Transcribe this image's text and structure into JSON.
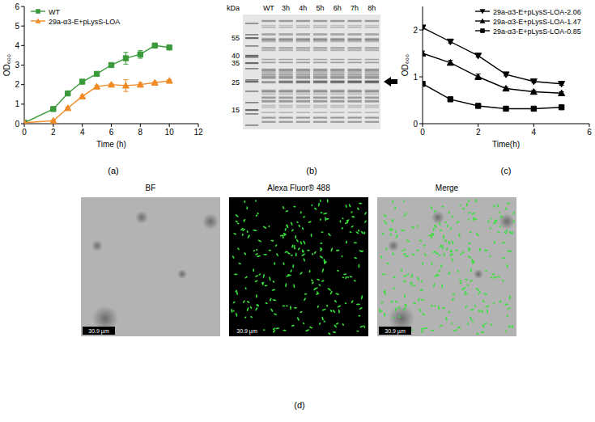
{
  "chart_data": [
    {
      "type": "line",
      "panel_label": "(a)",
      "x_label": "Time (h)",
      "y_label": "OD₆₀₀",
      "xlim": [
        0,
        12
      ],
      "xticks": [
        0,
        2,
        4,
        6,
        8,
        10,
        12
      ],
      "ylim": [
        0,
        6
      ],
      "yticks": [
        0,
        1,
        2,
        3,
        4,
        5,
        6
      ],
      "legend": "upper left",
      "x": [
        0,
        2,
        3,
        4,
        5,
        6,
        7,
        8,
        9,
        10
      ],
      "series": [
        {
          "name": "WT",
          "color": "#3a9a3a",
          "marker": "square",
          "values": [
            0.05,
            0.75,
            1.55,
            2.15,
            2.55,
            3.0,
            3.35,
            3.55,
            4.0,
            3.9
          ],
          "errors": [
            0.02,
            0.03,
            0.05,
            0.05,
            0.05,
            0.05,
            0.3,
            0.2,
            0.05,
            0.05
          ]
        },
        {
          "name": "29a-α3-E+pLysS-LOA",
          "color": "#f08a24",
          "marker": "triangle",
          "values": [
            0.05,
            0.15,
            0.8,
            1.4,
            1.9,
            2.0,
            1.95,
            2.0,
            2.1,
            2.2
          ],
          "errors": [
            0.02,
            0.03,
            0.05,
            0.05,
            0.05,
            0.05,
            0.3,
            0.1,
            0.05,
            0.05
          ]
        }
      ]
    },
    {
      "type": "line",
      "panel_label": "(c)",
      "x_label": "Time(h)",
      "y_label": "OD₆₀₀",
      "xlim": [
        0,
        6
      ],
      "xticks": [
        0,
        2,
        4,
        6
      ],
      "ylim": [
        0,
        2.5
      ],
      "yticks": [
        0,
        1,
        2
      ],
      "legend": "upper right",
      "x": [
        0,
        1,
        2,
        3,
        4,
        5
      ],
      "series": [
        {
          "name": "29a-α3-E+pLysS-LOA-2.06",
          "color": "#000000",
          "marker": "triangle-down",
          "values": [
            2.05,
            1.75,
            1.45,
            1.05,
            0.9,
            0.85
          ],
          "errors": [
            0.03,
            0.03,
            0.03,
            0.03,
            0.03,
            0.03
          ]
        },
        {
          "name": "29a-α3-E+pLysS-LOA-1.47",
          "color": "#000000",
          "marker": "triangle",
          "values": [
            1.5,
            1.3,
            1.0,
            0.75,
            0.68,
            0.65
          ],
          "errors": [
            0.05,
            0.05,
            0.06,
            0.03,
            0.03,
            0.03
          ]
        },
        {
          "name": "29a-α3-E+pLysS-LOA-0.85",
          "color": "#000000",
          "marker": "square",
          "values": [
            0.85,
            0.52,
            0.38,
            0.32,
            0.32,
            0.35
          ],
          "errors": [
            0.02,
            0.02,
            0.02,
            0.02,
            0.02,
            0.02
          ]
        }
      ]
    }
  ],
  "gel": {
    "panel_label": "(b)",
    "unit": "kDa",
    "lanes": [
      "WT",
      "3h",
      "4h",
      "5h",
      "6h",
      "7h",
      "8h"
    ],
    "markers": [
      55,
      40,
      35,
      25,
      15
    ],
    "arrow_kda": 25
  },
  "micrographs": {
    "panel_label": "(d)",
    "images": [
      {
        "title": "BF",
        "scale_bar": "30.9 µm"
      },
      {
        "title": "Alexa Fluor® 488",
        "scale_bar": "30.9 µm"
      },
      {
        "title": "Merge",
        "scale_bar": "30.9 µm"
      }
    ]
  }
}
